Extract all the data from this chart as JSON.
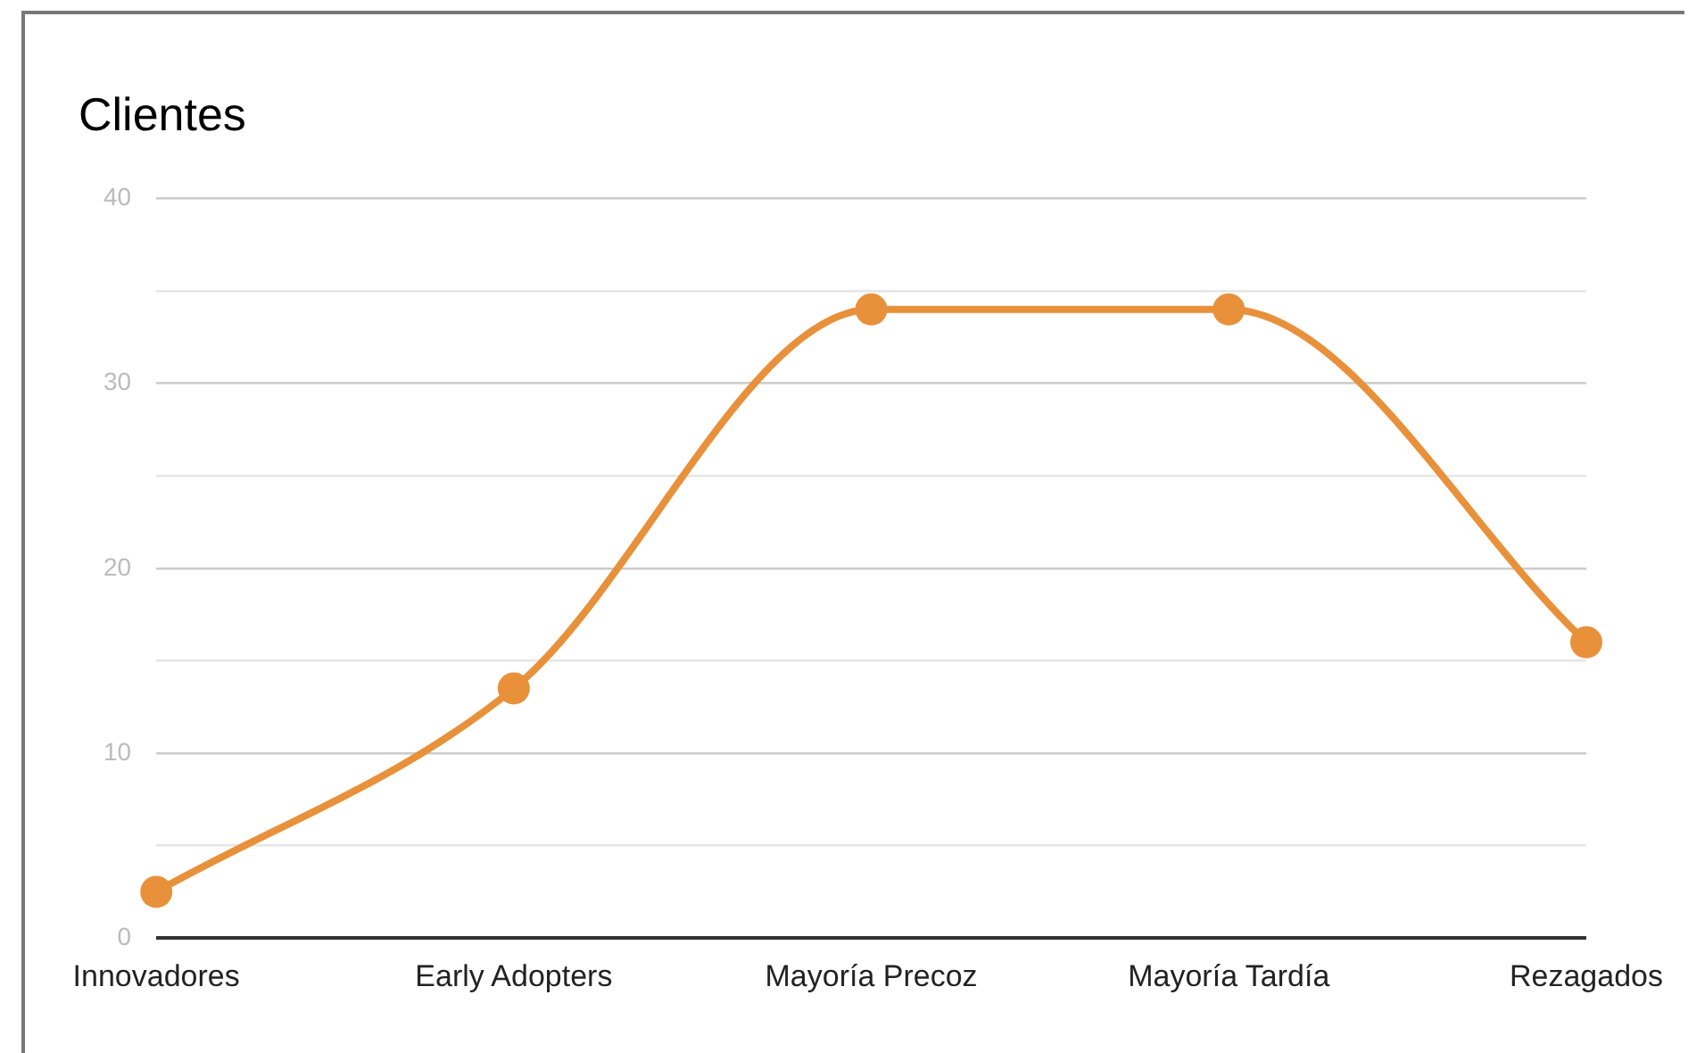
{
  "chart_data": {
    "type": "line",
    "title": "Clientes",
    "categories": [
      "Innovadores",
      "Early Adopters",
      "Mayoría Precoz",
      "Mayoría Tardía",
      "Rezagados"
    ],
    "series": [
      {
        "color": "#e8913a",
        "values": [
          2.5,
          13.5,
          34,
          34,
          16
        ]
      }
    ],
    "ylim": [
      0,
      40
    ],
    "yticks": [
      0,
      {
        "value": 5,
        "label": null
      },
      10,
      {
        "value": 15,
        "label": null
      },
      20,
      {
        "value": 25,
        "label": null
      },
      30,
      {
        "value": 35,
        "label": null
      },
      40
    ],
    "grid": "y",
    "legend": false,
    "marker": "circle",
    "line_style": "solid"
  }
}
